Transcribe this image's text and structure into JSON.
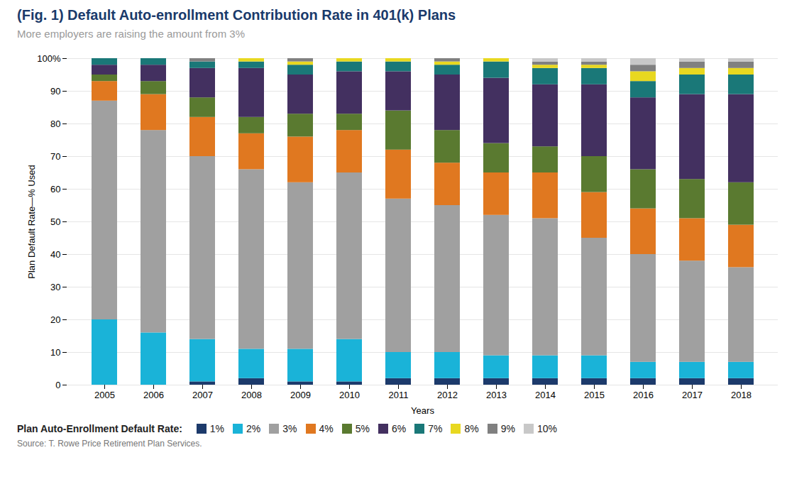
{
  "chart_data": {
    "type": "bar",
    "stacked": true,
    "title": "(Fig. 1) Default Auto-enrollment Contribution Rate in 401(k) Plans",
    "subtitle": "More employers are raising the amount from 3%",
    "xlabel": "Years",
    "ylabel": "Plan Default Rate—% Used",
    "legend_title": "Plan Auto-Enrollment Default Rate:",
    "source": "Source: T. Rowe Price Retirement Plan Services.",
    "categories": [
      "2005",
      "2006",
      "2007",
      "2008",
      "2009",
      "2010",
      "2011",
      "2012",
      "2013",
      "2014",
      "2015",
      "2016",
      "2017",
      "2018"
    ],
    "series": [
      {
        "name": "1%",
        "color": "#1c3a6b",
        "values": [
          0,
          0,
          1,
          2,
          1,
          1,
          2,
          2,
          2,
          2,
          2,
          2,
          2,
          2
        ]
      },
      {
        "name": "2%",
        "color": "#1ab3d8",
        "values": [
          20,
          16,
          13,
          9,
          10,
          13,
          8,
          8,
          7,
          7,
          7,
          5,
          5,
          5
        ]
      },
      {
        "name": "3%",
        "color": "#a0a0a0",
        "values": [
          67,
          62,
          56,
          55,
          51,
          51,
          47,
          45,
          43,
          42,
          36,
          33,
          31,
          29
        ]
      },
      {
        "name": "4%",
        "color": "#e07820",
        "values": [
          6,
          11,
          12,
          11,
          14,
          13,
          15,
          13,
          13,
          14,
          14,
          14,
          13,
          13
        ]
      },
      {
        "name": "5%",
        "color": "#5a7a30",
        "values": [
          2,
          4,
          6,
          5,
          7,
          5,
          12,
          10,
          9,
          8,
          11,
          12,
          12,
          13
        ]
      },
      {
        "name": "6%",
        "color": "#433060",
        "values": [
          3,
          5,
          9,
          15,
          12,
          13,
          12,
          17,
          20,
          19,
          22,
          22,
          26,
          27
        ]
      },
      {
        "name": "7%",
        "color": "#1a7878",
        "values": [
          2,
          2,
          2,
          2,
          3,
          3,
          3,
          3,
          5,
          5,
          5,
          5,
          6,
          6
        ]
      },
      {
        "name": "8%",
        "color": "#e8d820",
        "values": [
          0,
          0,
          0,
          1,
          1,
          1,
          1,
          1,
          1,
          1,
          1,
          3,
          2,
          2
        ]
      },
      {
        "name": "9%",
        "color": "#808080",
        "values": [
          0,
          0,
          1,
          0,
          1,
          0,
          0,
          1,
          0,
          1,
          1,
          2,
          2,
          2
        ]
      },
      {
        "name": "10%",
        "color": "#c8c8c8",
        "values": [
          0,
          0,
          0,
          0,
          0,
          0,
          0,
          0,
          0,
          1,
          1,
          2,
          1,
          1
        ]
      }
    ],
    "ylim": [
      0,
      100
    ],
    "yticks": [
      0,
      10,
      20,
      30,
      40,
      50,
      60,
      70,
      80,
      90,
      {
        "value": 100,
        "label": "100%"
      }
    ],
    "grid": true,
    "legend": "bottom"
  }
}
